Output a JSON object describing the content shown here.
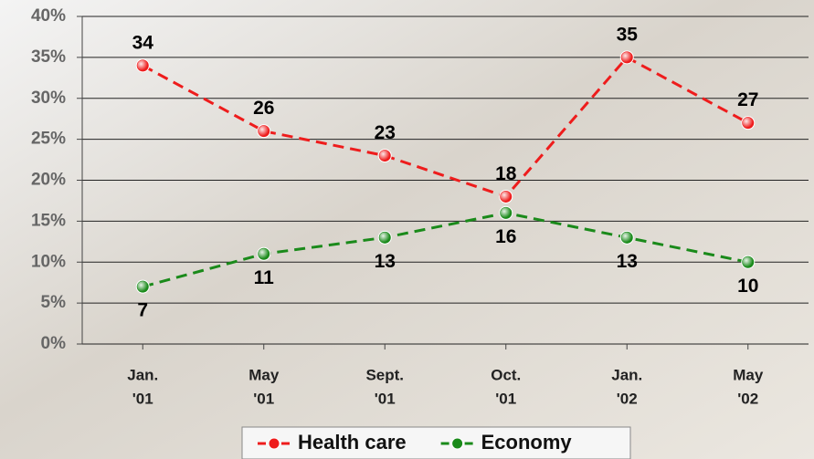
{
  "chart_data": {
    "type": "line",
    "categories": [
      [
        "Jan.",
        "'01"
      ],
      [
        "May",
        "'01"
      ],
      [
        "Sept.",
        "'01"
      ],
      [
        "Oct.",
        "'01"
      ],
      [
        "Jan.",
        "'02"
      ],
      [
        "May",
        "'02"
      ]
    ],
    "series": [
      {
        "name": "Health care",
        "color": "#ee1c1c",
        "values": [
          34,
          26,
          23,
          18,
          35,
          27
        ]
      },
      {
        "name": "Economy",
        "color": "#1a8a1a",
        "values": [
          7,
          11,
          13,
          16,
          13,
          10
        ]
      }
    ],
    "ylim": [
      0,
      40
    ],
    "yticks": [
      {
        "value": 0,
        "label": "0%"
      },
      {
        "value": 5,
        "label": "5%"
      },
      {
        "value": 10,
        "label": "10%"
      },
      {
        "value": 15,
        "label": "15%"
      },
      {
        "value": 20,
        "label": "20%"
      },
      {
        "value": 25,
        "label": "25%"
      },
      {
        "value": 30,
        "label": "30%"
      },
      {
        "value": 35,
        "label": "35%"
      },
      {
        "value": 40,
        "label": "40%"
      }
    ],
    "grid": true
  }
}
